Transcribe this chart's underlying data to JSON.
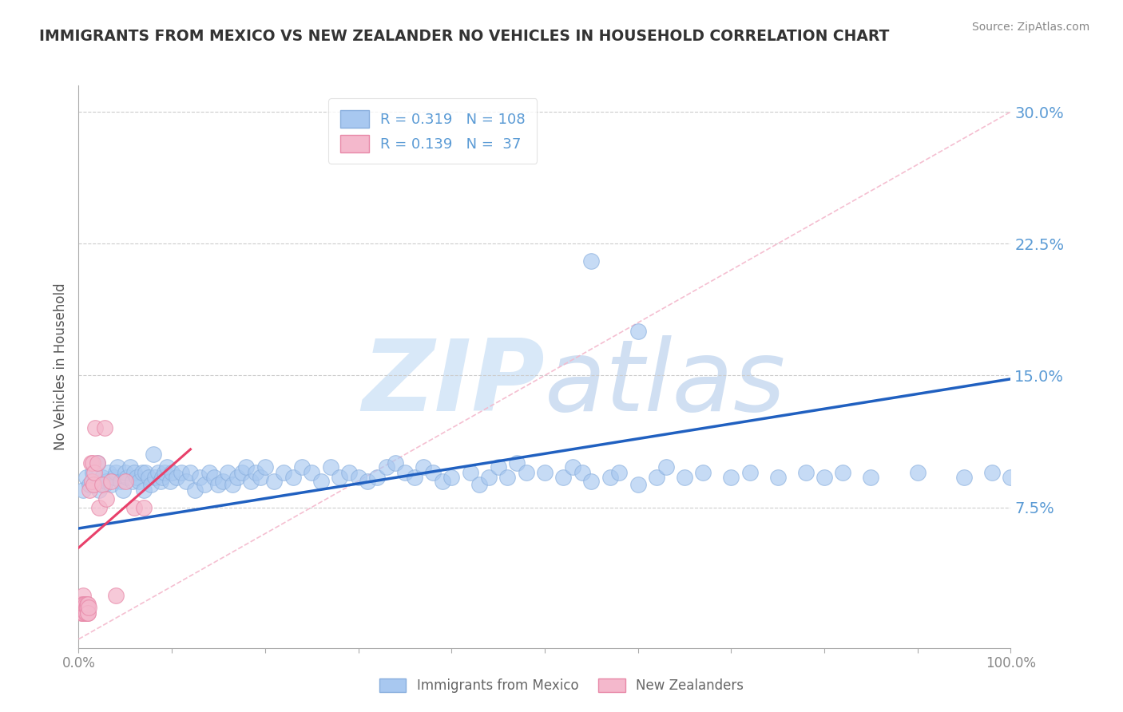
{
  "title": "IMMIGRANTS FROM MEXICO VS NEW ZEALANDER NO VEHICLES IN HOUSEHOLD CORRELATION CHART",
  "source": "Source: ZipAtlas.com",
  "ylabel": "No Vehicles in Household",
  "xlim": [
    0,
    1.0
  ],
  "ylim": [
    -0.005,
    0.315
  ],
  "yticks": [
    0.0,
    0.075,
    0.15,
    0.225,
    0.3
  ],
  "ytick_labels": [
    "",
    "7.5%",
    "15.0%",
    "22.5%",
    "30.0%"
  ],
  "xticks": [
    0.0,
    0.1,
    0.2,
    0.3,
    0.4,
    0.5,
    0.6,
    0.7,
    0.8,
    0.9,
    1.0
  ],
  "xtick_labels": [
    "0.0%",
    "",
    "",
    "",
    "",
    "",
    "",
    "",
    "",
    "",
    "100.0%"
  ],
  "watermark_top": "ZIP",
  "watermark_bottom": "atlas",
  "blue_color": "#a8c8f0",
  "pink_color": "#f4b8cc",
  "blue_line_color": "#2060c0",
  "pink_line_color": "#e8406a",
  "diag_line_color": "#f4b8cc",
  "grid_color": "#cccccc",
  "title_color": "#333333",
  "tick_label_color": "#5b9bd5",
  "xtick_label_color": "#888888",
  "watermark_color": "#d8e8f8",
  "background_color": "#ffffff",
  "blue_line_x0": 0.0,
  "blue_line_y0": 0.063,
  "blue_line_x1": 1.0,
  "blue_line_y1": 0.148,
  "pink_line_x0": 0.0,
  "pink_line_y0": 0.052,
  "pink_line_x1": 0.12,
  "pink_line_y1": 0.108,
  "blue_points_x": [
    0.005,
    0.008,
    0.012,
    0.015,
    0.02,
    0.022,
    0.025,
    0.028,
    0.03,
    0.032,
    0.035,
    0.038,
    0.04,
    0.042,
    0.045,
    0.048,
    0.05,
    0.052,
    0.055,
    0.058,
    0.06,
    0.062,
    0.065,
    0.068,
    0.07,
    0.072,
    0.075,
    0.078,
    0.08,
    0.082,
    0.085,
    0.088,
    0.09,
    0.092,
    0.095,
    0.098,
    0.1,
    0.105,
    0.11,
    0.115,
    0.12,
    0.125,
    0.13,
    0.135,
    0.14,
    0.145,
    0.15,
    0.155,
    0.16,
    0.165,
    0.17,
    0.175,
    0.18,
    0.185,
    0.19,
    0.195,
    0.2,
    0.21,
    0.22,
    0.23,
    0.24,
    0.25,
    0.26,
    0.27,
    0.28,
    0.29,
    0.3,
    0.31,
    0.32,
    0.33,
    0.34,
    0.35,
    0.36,
    0.37,
    0.38,
    0.39,
    0.4,
    0.42,
    0.43,
    0.44,
    0.45,
    0.46,
    0.47,
    0.48,
    0.5,
    0.52,
    0.53,
    0.54,
    0.55,
    0.57,
    0.58,
    0.6,
    0.62,
    0.63,
    0.65,
    0.67,
    0.7,
    0.72,
    0.75,
    0.78,
    0.8,
    0.82,
    0.85,
    0.9,
    0.95,
    0.98,
    1.0,
    0.6,
    0.55
  ],
  "blue_points_y": [
    0.085,
    0.092,
    0.088,
    0.095,
    0.1,
    0.085,
    0.092,
    0.088,
    0.09,
    0.095,
    0.088,
    0.092,
    0.095,
    0.098,
    0.09,
    0.085,
    0.095,
    0.092,
    0.098,
    0.09,
    0.095,
    0.092,
    0.09,
    0.095,
    0.085,
    0.095,
    0.092,
    0.088,
    0.105,
    0.092,
    0.095,
    0.09,
    0.092,
    0.095,
    0.098,
    0.09,
    0.095,
    0.092,
    0.095,
    0.09,
    0.095,
    0.085,
    0.092,
    0.088,
    0.095,
    0.092,
    0.088,
    0.09,
    0.095,
    0.088,
    0.092,
    0.095,
    0.098,
    0.09,
    0.095,
    0.092,
    0.098,
    0.09,
    0.095,
    0.092,
    0.098,
    0.095,
    0.09,
    0.098,
    0.092,
    0.095,
    0.092,
    0.09,
    0.092,
    0.098,
    0.1,
    0.095,
    0.092,
    0.098,
    0.095,
    0.09,
    0.092,
    0.095,
    0.088,
    0.092,
    0.098,
    0.092,
    0.1,
    0.095,
    0.095,
    0.092,
    0.098,
    0.095,
    0.09,
    0.092,
    0.095,
    0.088,
    0.092,
    0.098,
    0.092,
    0.095,
    0.092,
    0.095,
    0.092,
    0.095,
    0.092,
    0.095,
    0.092,
    0.095,
    0.092,
    0.095,
    0.092,
    0.175,
    0.215
  ],
  "pink_points_x": [
    0.002,
    0.003,
    0.003,
    0.004,
    0.004,
    0.005,
    0.005,
    0.005,
    0.006,
    0.006,
    0.007,
    0.007,
    0.008,
    0.008,
    0.009,
    0.009,
    0.01,
    0.01,
    0.01,
    0.011,
    0.012,
    0.013,
    0.014,
    0.015,
    0.016,
    0.017,
    0.018,
    0.02,
    0.022,
    0.025,
    0.028,
    0.03,
    0.035,
    0.04,
    0.05,
    0.06,
    0.07
  ],
  "pink_points_y": [
    0.02,
    0.018,
    0.015,
    0.02,
    0.015,
    0.025,
    0.02,
    0.015,
    0.02,
    0.018,
    0.015,
    0.02,
    0.018,
    0.015,
    0.02,
    0.018,
    0.015,
    0.02,
    0.015,
    0.018,
    0.085,
    0.1,
    0.09,
    0.1,
    0.088,
    0.095,
    0.12,
    0.1,
    0.075,
    0.088,
    0.12,
    0.08,
    0.09,
    0.025,
    0.09,
    0.075,
    0.075
  ]
}
